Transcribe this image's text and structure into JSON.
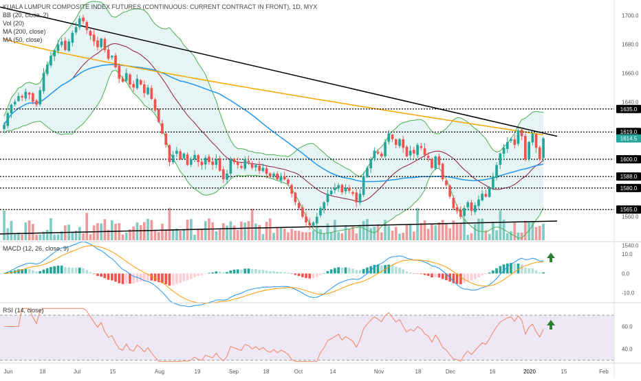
{
  "header": {
    "title": "KUALA LUMPUR COMPOSITE INDEX FUTURES (CONTINUOUS: CURRENT CONTRACT IN FRONT), 1D, MYX",
    "indicators": [
      "BB (20, close, 2)",
      "Vol (20)",
      "MA (200, close)",
      "MA (50, close)"
    ]
  },
  "macd_label": "MACD (12, 26, close, 9)",
  "rsi_label": "RSI (14, close)",
  "colors": {
    "up": "#26a69a",
    "down": "#ef5350",
    "upVol": "#80cbc4",
    "downVol": "#ef9a9a",
    "bbFill": "#e0f2f1",
    "bbLine": "#4caf50",
    "ma200": "#f7a600",
    "ma50": "#2196f3",
    "mid": "#8d1c3c",
    "rsiLine": "#f4845f",
    "rsiFill": "#ede7f6",
    "arrow": "#2e7d32",
    "trend": "#000000"
  },
  "chart_data": {
    "type": "candlestick",
    "title": "KUALA LUMPUR COMPOSITE INDEX FUTURES (CONTINUOUS: CURRENT CONTRACT IN FRONT), 1D, MYX",
    "x_ticks": [
      "Jun",
      "18",
      "Jul",
      "15",
      "Aug",
      "19",
      "Sep",
      "18",
      "Oct",
      "14",
      "Nov",
      "18",
      "Dec",
      "16",
      "2020",
      "15",
      "Feb"
    ],
    "price_axis": {
      "ticks": [
        1540.0,
        1560.0,
        1580.0,
        1600.0,
        1620.0,
        1640.0,
        1660.0,
        1680.0,
        1700.0
      ],
      "range": [
        1535,
        1708
      ]
    },
    "levels": [
      {
        "value": 1635.0,
        "label": "1635.0"
      },
      {
        "value": 1619.0,
        "label": "1619.0"
      },
      {
        "value": 1600.0,
        "label": "1600.0"
      },
      {
        "value": 1588.0,
        "label": "1588.0"
      },
      {
        "value": 1580.0,
        "label": "1580.0"
      },
      {
        "value": 1565.0,
        "label": "1565.0"
      }
    ],
    "last_price": {
      "value": 1614.5,
      "label": "1614.5"
    },
    "close_series": [
      1624,
      1632,
      1638,
      1640,
      1644,
      1643,
      1647,
      1645,
      1640,
      1638,
      1648,
      1660,
      1666,
      1672,
      1676,
      1680,
      1682,
      1676,
      1682,
      1688,
      1692,
      1698,
      1696,
      1690,
      1686,
      1682,
      1678,
      1684,
      1676,
      1670,
      1672,
      1664,
      1656,
      1654,
      1660,
      1652,
      1650,
      1656,
      1652,
      1646,
      1650,
      1642,
      1634,
      1626,
      1618,
      1610,
      1598,
      1603,
      1606,
      1600,
      1604,
      1596,
      1600,
      1603,
      1598,
      1596,
      1601,
      1598,
      1596,
      1600,
      1592,
      1586,
      1590,
      1600,
      1598,
      1596,
      1594,
      1600,
      1598,
      1594,
      1596,
      1592,
      1594,
      1590,
      1588,
      1590,
      1586,
      1588,
      1586,
      1583,
      1576,
      1570,
      1566,
      1560,
      1556,
      1554,
      1556,
      1560,
      1566,
      1570,
      1576,
      1578,
      1580,
      1582,
      1577,
      1580,
      1578,
      1576,
      1570,
      1576,
      1588,
      1594,
      1600,
      1606,
      1604,
      1602,
      1612,
      1618,
      1614,
      1610,
      1614,
      1608,
      1602,
      1606,
      1604,
      1610,
      1608,
      1603,
      1601,
      1594,
      1602,
      1596,
      1586,
      1582,
      1574,
      1566,
      1564,
      1560,
      1566,
      1570,
      1564,
      1568,
      1572,
      1576,
      1574,
      1580,
      1588,
      1596,
      1604,
      1608,
      1612,
      1614,
      1610,
      1620,
      1616,
      1600,
      1612,
      1618,
      1608,
      1600,
      1614.5
    ],
    "macd_axis": {
      "ticks": [
        10.0,
        0.0,
        -10.0
      ],
      "range": [
        -14,
        15
      ]
    },
    "rsi_axis": {
      "ticks": [
        60.0,
        40.0
      ],
      "range": [
        28,
        78
      ],
      "bands": [
        70,
        30
      ]
    }
  }
}
